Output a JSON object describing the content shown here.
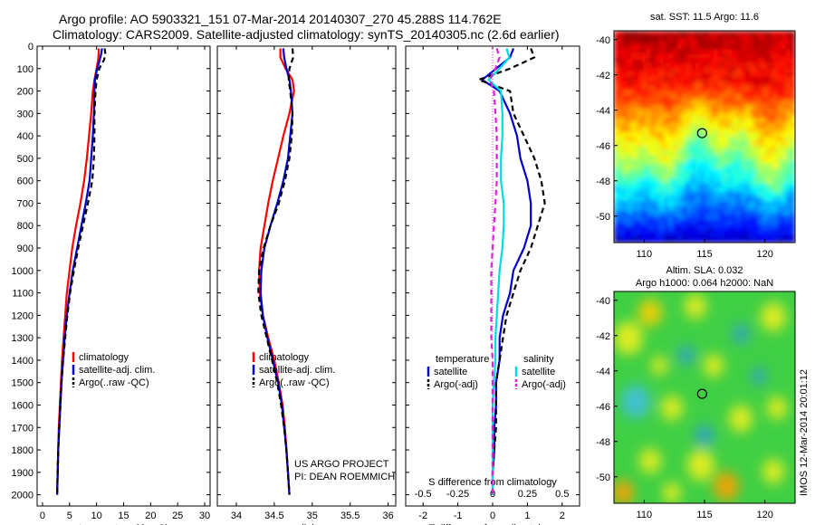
{
  "figure": {
    "title_line1": "Argo profile: AO 5903321_151 07-Mar-2014 20140307_270 45.288S 114.762E",
    "title_line2": "Climatology: CARS2009. Satellite-adjusted climatology: synTS_20140305.nc (2.6d earlier)",
    "project_line1": "US ARGO PROJECT",
    "project_line2": "PI: DEAN ROEMMICH",
    "watermark": "IMOS 12-Mar-2014 20:01:12"
  },
  "colors": {
    "climatology": "#ff0000",
    "satellite": "#0000cc",
    "argo": "#000000",
    "sal_satellite": "#00dddd",
    "sal_argo": "#e020e0"
  },
  "chart_data": [
    {
      "type": "line",
      "panel": "temperature",
      "xlabel": "temperature (deg C)",
      "ylabel": "",
      "xlim": [
        -1,
        31
      ],
      "ylim": [
        2050,
        0
      ],
      "xticks": [
        0,
        5,
        10,
        15,
        20,
        25,
        30
      ],
      "yticks": [
        0,
        100,
        200,
        300,
        400,
        500,
        600,
        700,
        800,
        900,
        1000,
        1100,
        1200,
        1300,
        1400,
        1500,
        1600,
        1700,
        1800,
        1900,
        2000
      ],
      "legend_position": "lower-center",
      "series": [
        {
          "name": "climatology",
          "style": "solid",
          "color": "#ff0000",
          "depth": [
            10,
            30,
            60,
            100,
            150,
            200,
            300,
            400,
            500,
            600,
            700,
            800,
            900,
            1000,
            1100,
            1200,
            1300,
            1400,
            1500,
            1600,
            1700,
            1800,
            1900,
            2000
          ],
          "values": [
            10.4,
            10.4,
            10.3,
            10.0,
            9.6,
            9.3,
            9.0,
            8.6,
            8.2,
            7.7,
            7.0,
            6.2,
            5.5,
            5.0,
            4.5,
            4.2,
            3.9,
            3.6,
            3.4,
            3.2,
            3.0,
            2.9,
            2.8,
            2.7
          ]
        },
        {
          "name": "satellite-adj. clim.",
          "style": "solid",
          "color": "#0000cc",
          "depth": [
            10,
            30,
            60,
            100,
            150,
            200,
            300,
            400,
            500,
            600,
            700,
            800,
            900,
            1000,
            1100,
            1200,
            1300,
            1400,
            1500,
            1600,
            1700,
            1800,
            1900,
            2000
          ],
          "values": [
            11.0,
            10.9,
            10.6,
            10.1,
            9.7,
            9.6,
            9.5,
            9.3,
            9.0,
            8.7,
            8.0,
            7.2,
            6.4,
            5.6,
            5.0,
            4.5,
            4.1,
            3.8,
            3.5,
            3.3,
            3.1,
            2.9,
            2.8,
            2.7
          ]
        },
        {
          "name": "Argo(..raw -QC)",
          "style": "dashed",
          "color": "#000000",
          "depth": [
            10,
            30,
            60,
            100,
            150,
            200,
            300,
            400,
            500,
            600,
            700,
            800,
            900,
            1000,
            1100,
            1200,
            1300,
            1400,
            1500,
            1600,
            1700,
            1800,
            1900,
            2000
          ],
          "values": [
            11.5,
            11.6,
            11.4,
            10.5,
            10.0,
            9.8,
            9.6,
            9.6,
            9.5,
            9.2,
            8.4,
            7.5,
            6.6,
            5.8,
            5.1,
            4.6,
            4.2,
            3.8,
            3.5,
            3.3,
            3.1,
            2.9,
            2.8,
            2.7
          ]
        }
      ]
    },
    {
      "type": "line",
      "panel": "salinity",
      "xlabel": "salinity",
      "ylabel": "",
      "xlim": [
        33.75,
        36.1
      ],
      "ylim": [
        2050,
        0
      ],
      "xticks": [
        34,
        34.5,
        35,
        35.5,
        36
      ],
      "legend_position": "lower-center",
      "series": [
        {
          "name": "climatology",
          "style": "solid",
          "color": "#ff0000",
          "depth": [
            10,
            50,
            100,
            150,
            200,
            300,
            400,
            500,
            600,
            700,
            800,
            900,
            1000,
            1100,
            1200,
            1300,
            1400,
            1500,
            1600,
            1700,
            1800,
            1900,
            2000
          ],
          "values": [
            34.58,
            34.58,
            34.65,
            34.74,
            34.76,
            34.7,
            34.62,
            34.55,
            34.48,
            34.42,
            34.37,
            34.32,
            34.3,
            34.31,
            34.35,
            34.42,
            34.5,
            34.56,
            34.61,
            34.64,
            34.66,
            34.68,
            34.7
          ]
        },
        {
          "name": "satellite-adj. clim.",
          "style": "solid",
          "color": "#0000cc",
          "depth": [
            10,
            50,
            100,
            150,
            200,
            300,
            400,
            500,
            600,
            700,
            800,
            900,
            1000,
            1100,
            1200,
            1300,
            1400,
            1500,
            1600,
            1700,
            1800,
            1900,
            2000
          ],
          "values": [
            34.62,
            34.63,
            34.66,
            34.7,
            34.72,
            34.74,
            34.71,
            34.68,
            34.62,
            34.54,
            34.45,
            34.37,
            34.33,
            34.32,
            34.35,
            34.41,
            34.48,
            34.55,
            34.6,
            34.63,
            34.66,
            34.68,
            34.7
          ]
        },
        {
          "name": "Argo(..raw -QC)",
          "style": "dashed",
          "color": "#000000",
          "depth": [
            10,
            50,
            100,
            150,
            200,
            300,
            400,
            500,
            600,
            700,
            800,
            900,
            1000,
            1100,
            1200,
            1300,
            1400,
            1500,
            1600,
            1700,
            1800,
            1900,
            2000
          ],
          "values": [
            34.74,
            34.75,
            34.7,
            34.69,
            34.71,
            34.74,
            34.73,
            34.7,
            34.64,
            34.56,
            34.45,
            34.36,
            34.3,
            34.29,
            34.33,
            34.4,
            34.47,
            34.54,
            34.59,
            34.63,
            34.66,
            34.68,
            34.7
          ]
        }
      ]
    },
    {
      "type": "line",
      "panel": "difference",
      "xlabel": "T difference from climatology",
      "x2label": "S difference from climatology",
      "ylabel": "",
      "xlim": [
        -2.5,
        2.5
      ],
      "x2lim": [
        -0.625,
        0.625
      ],
      "ylim": [
        2050,
        0
      ],
      "xticks": [
        -2,
        -1,
        0,
        1,
        2
      ],
      "x2ticks": [
        -0.5,
        -0.25,
        0,
        0.25,
        0.5
      ],
      "x2ticklabels": [
        "-0.5",
        "-0.25",
        "0",
        "0.25",
        "0.5"
      ],
      "legend_position": "lower-center",
      "legend_headers": [
        "temperature",
        "salinity"
      ],
      "series": [
        {
          "name": "satellite",
          "group": "temperature",
          "style": "solid",
          "color": "#0000cc",
          "depth": [
            10,
            50,
            100,
            150,
            200,
            300,
            400,
            500,
            600,
            700,
            800,
            900,
            1000,
            1100,
            1200,
            1300,
            1400,
            1500,
            1600,
            1700,
            1800,
            1900,
            2000
          ],
          "values": [
            0.6,
            0.5,
            0.1,
            -0.3,
            0.2,
            0.5,
            0.7,
            0.8,
            1.0,
            1.1,
            1.1,
            0.9,
            0.6,
            0.5,
            0.3,
            0.2,
            0.2,
            0.1,
            0.1,
            0.05,
            0.05,
            0.0,
            0.0
          ]
        },
        {
          "name": "Argo(-adj)",
          "group": "temperature",
          "style": "dashed",
          "color": "#000000",
          "depth": [
            10,
            50,
            100,
            150,
            200,
            300,
            400,
            500,
            600,
            700,
            800,
            900,
            1000,
            1100,
            1200,
            1300,
            1400,
            1500,
            1600,
            1700,
            1800,
            1900,
            2000
          ],
          "values": [
            1.1,
            1.2,
            0.5,
            -0.4,
            0.5,
            0.6,
            0.9,
            1.2,
            1.4,
            1.5,
            1.3,
            1.1,
            0.8,
            0.6,
            0.4,
            0.3,
            0.2,
            0.1,
            0.1,
            0.1,
            0.05,
            0.0,
            0.0
          ]
        },
        {
          "name": "satellite",
          "group": "salinity",
          "style": "solid",
          "color": "#00dddd",
          "axis": "x2",
          "depth": [
            10,
            50,
            100,
            150,
            200,
            300,
            400,
            500,
            600,
            700,
            800,
            900,
            1000,
            1100,
            1200,
            1300,
            1400,
            1500,
            1600,
            1700,
            1800,
            1900,
            2000
          ],
          "values": [
            0.1,
            0.12,
            0.05,
            -0.03,
            0.06,
            0.07,
            0.07,
            0.06,
            0.06,
            0.08,
            0.08,
            0.07,
            0.05,
            0.04,
            0.03,
            0.02,
            0.02,
            0.01,
            0.0,
            0.0,
            0.0,
            0.0,
            0.0
          ]
        },
        {
          "name": "Argo(-adj)",
          "group": "salinity",
          "style": "dashed",
          "color": "#e020e0",
          "axis": "x2",
          "depth": [
            10,
            50,
            100,
            150,
            200,
            300,
            400,
            500,
            600,
            700,
            800,
            900,
            1000,
            1100,
            1200,
            1300,
            1400,
            1500,
            1600,
            1700,
            1800,
            1900,
            2000
          ],
          "values": [
            0.03,
            0.05,
            0.02,
            -0.02,
            0.01,
            0.02,
            0.03,
            0.03,
            0.03,
            0.02,
            0.01,
            0.0,
            -0.01,
            -0.01,
            -0.01,
            -0.01,
            0.0,
            0.0,
            0.0,
            0.0,
            0.0,
            0.0,
            0.0
          ]
        }
      ]
    },
    {
      "type": "heatmap",
      "panel": "sst_map",
      "title": "sat. SST: 11.5 Argo: 11.6",
      "xlim": [
        107.5,
        122.5
      ],
      "ylim": [
        -51.5,
        -39.5
      ],
      "xticks": [
        110,
        115,
        120
      ],
      "yticks": [
        -40,
        -42,
        -44,
        -46,
        -48,
        -50
      ],
      "marker": {
        "lon": 114.8,
        "lat": -45.3
      }
    },
    {
      "type": "heatmap",
      "panel": "sla_map",
      "title_line1": "Altim. SLA: 0.032",
      "title_line2": "Argo h1000: 0.064 h2000: NaN",
      "xlim": [
        107.5,
        122.5
      ],
      "ylim": [
        -51.5,
        -39.5
      ],
      "xticks": [
        110,
        115,
        120
      ],
      "yticks": [
        -40,
        -42,
        -44,
        -46,
        -48,
        -50
      ],
      "marker": {
        "lon": 114.8,
        "lat": -45.3
      }
    }
  ]
}
